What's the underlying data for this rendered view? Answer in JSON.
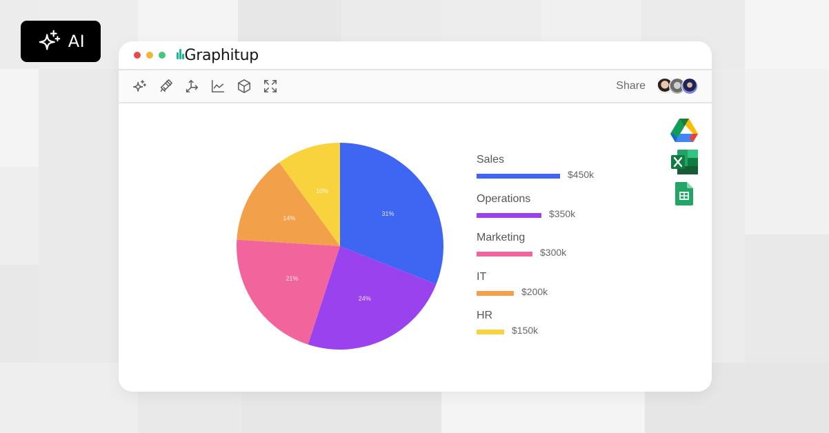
{
  "badge": {
    "label": "AI",
    "icon": "sparkles-icon"
  },
  "window": {
    "traffic_lights": [
      {
        "name": "close",
        "color": "#e94b4b"
      },
      {
        "name": "minimize",
        "color": "#f2b43a"
      },
      {
        "name": "maximize",
        "color": "#45c67a"
      }
    ],
    "app_name": "Graphitup"
  },
  "toolbar": {
    "tools": [
      {
        "name": "ai-sparkle-tool",
        "icon": "sparkle-icon"
      },
      {
        "name": "style-brush-tool",
        "icon": "paintbrush-icon"
      },
      {
        "name": "axes-tool",
        "icon": "axes-3d-icon"
      },
      {
        "name": "line-chart-tool",
        "icon": "line-chart-icon"
      },
      {
        "name": "3d-box-tool",
        "icon": "cube-icon"
      },
      {
        "name": "fullscreen-tool",
        "icon": "expand-icon"
      }
    ],
    "share_label": "Share",
    "avatars": [
      "collaborator-1",
      "collaborator-2",
      "collaborator-3"
    ]
  },
  "integrations": [
    {
      "name": "google-drive",
      "icon": "google-drive-icon"
    },
    {
      "name": "microsoft-excel",
      "icon": "excel-icon"
    },
    {
      "name": "google-sheets",
      "icon": "google-sheets-icon"
    }
  ],
  "chart_data": {
    "type": "pie",
    "title": "",
    "categories": [
      "Sales",
      "Operations",
      "Marketing",
      "IT",
      "HR"
    ],
    "values": [
      450,
      350,
      300,
      200,
      150
    ],
    "value_labels": [
      "$450k",
      "$350k",
      "$300k",
      "$200k",
      "$150k"
    ],
    "percent_labels": [
      "31%",
      "24%",
      "21%",
      "14%",
      "10%"
    ],
    "percents": [
      31,
      24,
      21,
      14,
      10
    ],
    "colors": [
      "#3f66f2",
      "#9b42ef",
      "#f2649c",
      "#f2a04a",
      "#f8d33e"
    ],
    "start_angle": "12 o'clock, clockwise",
    "legend_position": "right",
    "legend_style": "horizontal bars proportional to value"
  }
}
